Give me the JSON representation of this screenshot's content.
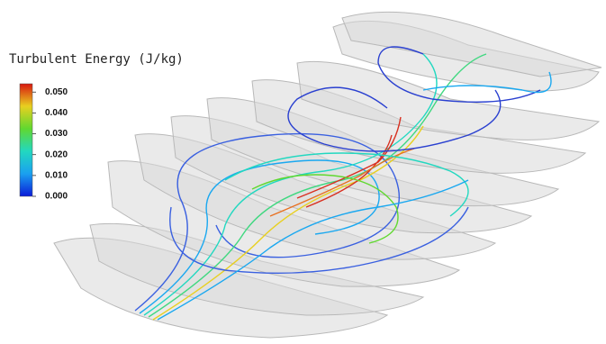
{
  "legend": {
    "title": "Turbulent Energy (J/kg)",
    "range": [
      0,
      0.054
    ],
    "ticks": [
      {
        "value": 0.05,
        "label": "0.050"
      },
      {
        "value": 0.04,
        "label": "0.040"
      },
      {
        "value": 0.03,
        "label": "0.030"
      },
      {
        "value": 0.02,
        "label": "0.020"
      },
      {
        "value": 0.01,
        "label": "0.010"
      },
      {
        "value": 0,
        "label": "0.000"
      }
    ]
  }
}
